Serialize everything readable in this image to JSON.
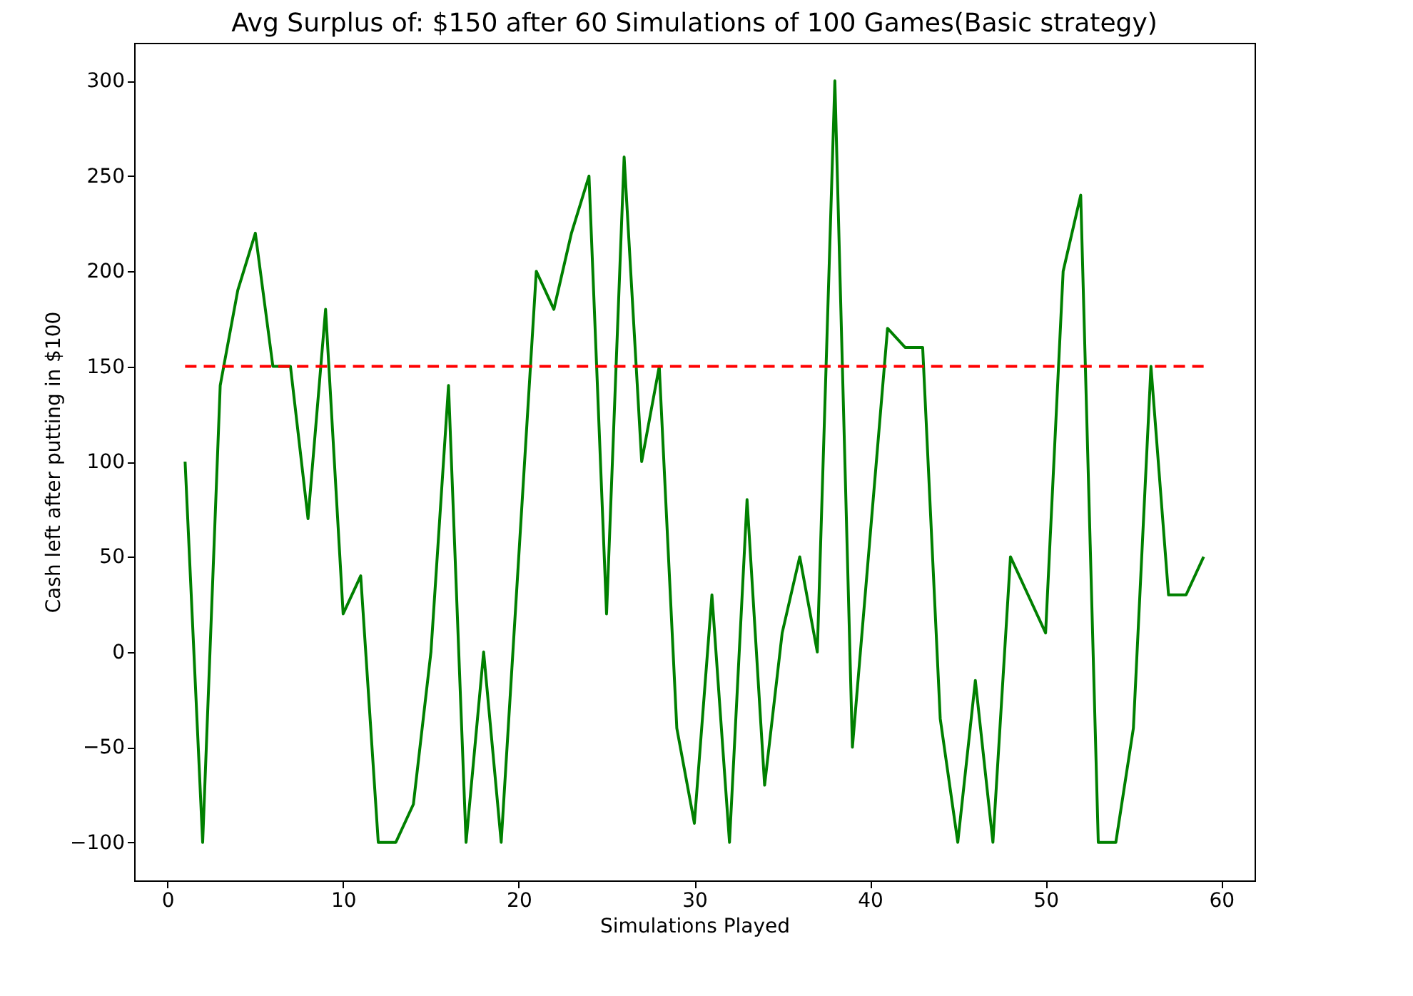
{
  "chart_data": {
    "type": "line",
    "title": "Avg Surplus of: $150 after 60 Simulations of 100 Games(Basic strategy)",
    "xlabel": "Simulations Played",
    "ylabel": "Cash left after putting in $100",
    "x": [
      1,
      2,
      3,
      4,
      5,
      6,
      7,
      8,
      9,
      10,
      11,
      12,
      13,
      14,
      15,
      16,
      17,
      18,
      19,
      20,
      21,
      22,
      23,
      24,
      25,
      26,
      27,
      28,
      29,
      30,
      31,
      32,
      33,
      34,
      35,
      36,
      37,
      38,
      39,
      40,
      41,
      42,
      43,
      44,
      45,
      46,
      47,
      48,
      49,
      50,
      51,
      52,
      53,
      54,
      55,
      56,
      57,
      58,
      59
    ],
    "series": [
      {
        "color": "#008000",
        "line_style": "solid",
        "values": [
          100,
          -100,
          140,
          190,
          220,
          150,
          150,
          70,
          180,
          20,
          40,
          -100,
          -100,
          -80,
          0,
          140,
          -100,
          0,
          -100,
          50,
          200,
          180,
          220,
          250,
          20,
          260,
          100,
          150,
          -40,
          -90,
          30,
          -100,
          80,
          -70,
          10,
          50,
          0,
          300,
          -50,
          60,
          170,
          160,
          160,
          -35,
          -100,
          -15,
          -100,
          50,
          30,
          10,
          200,
          240,
          -100,
          -100,
          -40,
          150,
          30,
          30,
          50
        ]
      },
      {
        "type": "line",
        "color": "#ff0000",
        "line_style": "dashed",
        "x": [
          1,
          59
        ],
        "values": [
          150,
          150
        ]
      }
    ],
    "xlim": [
      -1.9,
      61.9
    ],
    "ylim": [
      -120,
      320
    ],
    "xticks": [
      0,
      10,
      20,
      30,
      40,
      50,
      60
    ],
    "yticks": [
      -100,
      -50,
      0,
      50,
      100,
      150,
      200,
      250,
      300
    ],
    "grid": false
  }
}
